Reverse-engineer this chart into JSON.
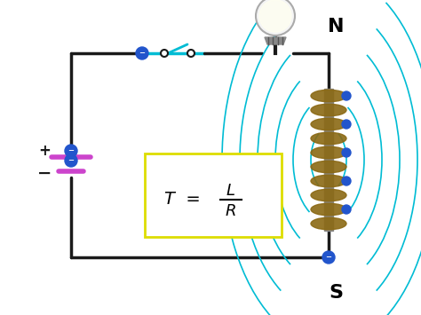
{
  "background_color": "#ffffff",
  "circuit_color": "#1a1a1a",
  "wire_color": "#1a1a1a",
  "cyan_color": "#00bcd4",
  "blue_dot_color": "#2255cc",
  "battery_pos_color": "#cc44cc",
  "formula_box_color": "#dddd00",
  "formula_text": "T  =  ",
  "formula_L": "L",
  "formula_R": "R",
  "N_label": "N",
  "S_label": "S",
  "plus_label": "+",
  "minus_label": "−",
  "coil_color": "#8B6914",
  "core_color": "#888888",
  "figsize": [
    4.74,
    3.55
  ],
  "dpi": 100
}
